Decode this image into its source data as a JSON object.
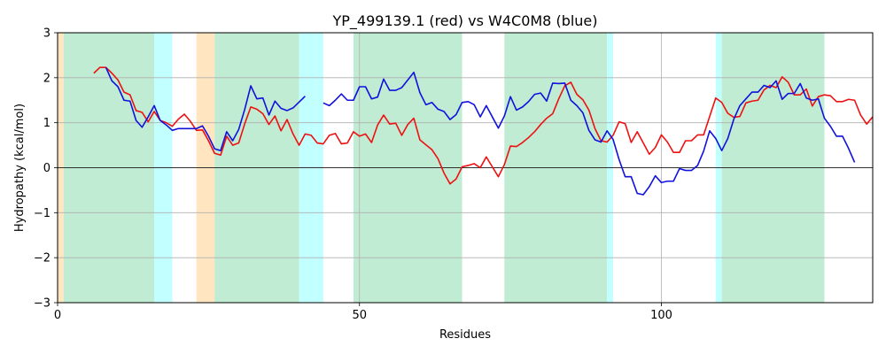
{
  "chart_data": {
    "type": "line",
    "title": "YP_499139.1 (red) vs W4C0M8 (blue)",
    "xlabel": "Residues",
    "ylabel": "Hydropathy (kcal/mol)",
    "xlim": [
      0,
      135
    ],
    "ylim": [
      -3,
      3
    ],
    "xticks": [
      0,
      50,
      100
    ],
    "yticks": [
      -3,
      -2,
      -1,
      0,
      1,
      2,
      3
    ],
    "grid": true,
    "legend": "none",
    "colors": {
      "red": "#ee1111",
      "blue": "#1111dd",
      "green": "#c0ecd3",
      "cyan": "#c2ffff",
      "orange": "#ffe6c0",
      "grid": "#b0b0b0"
    },
    "bands": [
      {
        "x0": 0,
        "x1": 1,
        "color": "orange"
      },
      {
        "x0": 1,
        "x1": 16,
        "color": "green"
      },
      {
        "x0": 16,
        "x1": 19,
        "color": "cyan"
      },
      {
        "x0": 23,
        "x1": 26,
        "color": "orange"
      },
      {
        "x0": 26,
        "x1": 40,
        "color": "green"
      },
      {
        "x0": 40,
        "x1": 44,
        "color": "cyan"
      },
      {
        "x0": 49,
        "x1": 67,
        "color": "green"
      },
      {
        "x0": 74,
        "x1": 91,
        "color": "green"
      },
      {
        "x0": 91,
        "x1": 92,
        "color": "cyan"
      },
      {
        "x0": 109,
        "x1": 110,
        "color": "cyan"
      },
      {
        "x0": 110,
        "x1": 127,
        "color": "green"
      }
    ],
    "series": [
      {
        "color": "red",
        "segments": [
          [
            [
              6,
              2.1
            ],
            [
              7,
              2.23
            ],
            [
              8,
              2.23
            ],
            [
              9,
              2.1
            ],
            [
              10,
              1.95
            ],
            [
              11,
              1.68
            ],
            [
              12,
              1.62
            ],
            [
              13,
              1.27
            ],
            [
              14,
              1.23
            ],
            [
              15,
              1.02
            ],
            [
              16,
              1.25
            ],
            [
              17,
              1.05
            ],
            [
              18,
              1.0
            ],
            [
              19,
              0.92
            ],
            [
              20,
              1.08
            ],
            [
              21,
              1.19
            ],
            [
              22,
              1.03
            ],
            [
              23,
              0.83
            ],
            [
              24,
              0.84
            ],
            [
              25,
              0.6
            ],
            [
              26,
              0.32
            ],
            [
              27,
              0.28
            ],
            [
              28,
              0.7
            ],
            [
              29,
              0.5
            ],
            [
              30,
              0.55
            ],
            [
              31,
              0.98
            ],
            [
              32,
              1.35
            ],
            [
              33,
              1.3
            ],
            [
              34,
              1.2
            ],
            [
              35,
              0.96
            ],
            [
              36,
              1.15
            ],
            [
              37,
              0.82
            ],
            [
              38,
              1.07
            ],
            [
              39,
              0.75
            ],
            [
              40,
              0.5
            ],
            [
              41,
              0.75
            ],
            [
              42,
              0.72
            ],
            [
              43,
              0.55
            ],
            [
              44,
              0.53
            ],
            [
              45,
              0.72
            ],
            [
              46,
              0.76
            ],
            [
              47,
              0.53
            ],
            [
              48,
              0.55
            ],
            [
              49,
              0.8
            ],
            [
              50,
              0.7
            ],
            [
              51,
              0.75
            ],
            [
              52,
              0.56
            ],
            [
              53,
              0.95
            ],
            [
              54,
              1.17
            ],
            [
              55,
              0.97
            ],
            [
              56,
              0.99
            ],
            [
              57,
              0.72
            ],
            [
              58,
              0.96
            ],
            [
              59,
              1.1
            ],
            [
              60,
              0.62
            ],
            [
              61,
              0.51
            ],
            [
              62,
              0.4
            ],
            [
              63,
              0.2
            ],
            [
              64,
              -0.12
            ],
            [
              65,
              -0.36
            ],
            [
              66,
              -0.25
            ],
            [
              67,
              0.02
            ],
            [
              68,
              0.05
            ],
            [
              69,
              0.09
            ],
            [
              70,
              0.0
            ],
            [
              71,
              0.24
            ],
            [
              72,
              0.02
            ],
            [
              73,
              -0.2
            ],
            [
              74,
              0.07
            ],
            [
              75,
              0.48
            ],
            [
              76,
              0.47
            ],
            [
              77,
              0.56
            ],
            [
              78,
              0.67
            ],
            [
              79,
              0.8
            ],
            [
              80,
              0.96
            ],
            [
              81,
              1.1
            ],
            [
              82,
              1.2
            ],
            [
              83,
              1.53
            ],
            [
              84,
              1.82
            ],
            [
              85,
              1.9
            ],
            [
              86,
              1.63
            ],
            [
              87,
              1.51
            ],
            [
              88,
              1.28
            ],
            [
              89,
              0.87
            ],
            [
              90,
              0.6
            ],
            [
              91,
              0.57
            ],
            [
              92,
              0.72
            ],
            [
              93,
              1.02
            ],
            [
              94,
              0.98
            ],
            [
              95,
              0.56
            ],
            [
              96,
              0.8
            ],
            [
              97,
              0.55
            ],
            [
              98,
              0.3
            ],
            [
              99,
              0.45
            ],
            [
              100,
              0.73
            ],
            [
              101,
              0.57
            ],
            [
              102,
              0.34
            ],
            [
              103,
              0.34
            ],
            [
              104,
              0.6
            ],
            [
              105,
              0.6
            ],
            [
              106,
              0.73
            ],
            [
              107,
              0.73
            ],
            [
              108,
              1.14
            ],
            [
              109,
              1.55
            ],
            [
              110,
              1.45
            ],
            [
              111,
              1.21
            ],
            [
              112,
              1.12
            ],
            [
              113,
              1.14
            ],
            [
              114,
              1.44
            ],
            [
              115,
              1.48
            ],
            [
              116,
              1.5
            ],
            [
              117,
              1.73
            ],
            [
              118,
              1.83
            ],
            [
              119,
              1.78
            ],
            [
              120,
              2.02
            ],
            [
              121,
              1.9
            ],
            [
              122,
              1.62
            ],
            [
              123,
              1.62
            ],
            [
              124,
              1.75
            ],
            [
              125,
              1.37
            ],
            [
              126,
              1.58
            ],
            [
              127,
              1.62
            ],
            [
              128,
              1.6
            ],
            [
              129,
              1.47
            ],
            [
              130,
              1.47
            ],
            [
              131,
              1.52
            ],
            [
              132,
              1.5
            ],
            [
              133,
              1.17
            ],
            [
              134,
              0.97
            ],
            [
              135,
              1.13
            ]
          ]
        ]
      },
      {
        "color": "blue",
        "segments": [
          [
            [
              8,
              2.23
            ],
            [
              9,
              1.93
            ],
            [
              10,
              1.8
            ],
            [
              11,
              1.5
            ],
            [
              12,
              1.48
            ],
            [
              13,
              1.05
            ],
            [
              14,
              0.9
            ],
            [
              15,
              1.13
            ],
            [
              16,
              1.38
            ],
            [
              17,
              1.05
            ],
            [
              18,
              0.95
            ],
            [
              19,
              0.83
            ],
            [
              20,
              0.87
            ],
            [
              21,
              0.87
            ],
            [
              22,
              0.87
            ],
            [
              23,
              0.87
            ],
            [
              24,
              0.93
            ],
            [
              25,
              0.7
            ],
            [
              26,
              0.42
            ],
            [
              27,
              0.38
            ],
            [
              28,
              0.8
            ],
            [
              29,
              0.6
            ],
            [
              30,
              0.85
            ],
            [
              31,
              1.3
            ],
            [
              32,
              1.82
            ],
            [
              33,
              1.53
            ],
            [
              34,
              1.55
            ],
            [
              35,
              1.17
            ],
            [
              36,
              1.48
            ],
            [
              37,
              1.32
            ],
            [
              38,
              1.27
            ],
            [
              39,
              1.33
            ],
            [
              40,
              1.46
            ],
            [
              41,
              1.59
            ]
          ],
          [
            [
              44,
              1.44
            ],
            [
              45,
              1.38
            ],
            [
              46,
              1.5
            ],
            [
              47,
              1.64
            ],
            [
              48,
              1.5
            ],
            [
              49,
              1.5
            ],
            [
              50,
              1.8
            ],
            [
              51,
              1.8
            ],
            [
              52,
              1.53
            ],
            [
              53,
              1.57
            ],
            [
              54,
              1.97
            ],
            [
              55,
              1.72
            ],
            [
              56,
              1.72
            ],
            [
              57,
              1.78
            ],
            [
              58,
              1.95
            ],
            [
              59,
              2.12
            ],
            [
              60,
              1.67
            ],
            [
              61,
              1.4
            ],
            [
              62,
              1.45
            ],
            [
              63,
              1.3
            ],
            [
              64,
              1.25
            ],
            [
              65,
              1.07
            ],
            [
              66,
              1.18
            ],
            [
              67,
              1.45
            ],
            [
              68,
              1.47
            ],
            [
              69,
              1.4
            ],
            [
              70,
              1.13
            ],
            [
              71,
              1.38
            ],
            [
              72,
              1.13
            ],
            [
              73,
              0.88
            ],
            [
              74,
              1.15
            ],
            [
              75,
              1.58
            ],
            [
              76,
              1.28
            ],
            [
              77,
              1.35
            ],
            [
              78,
              1.47
            ],
            [
              79,
              1.63
            ],
            [
              80,
              1.66
            ],
            [
              81,
              1.48
            ],
            [
              82,
              1.88
            ],
            [
              83,
              1.87
            ],
            [
              84,
              1.88
            ],
            [
              85,
              1.5
            ],
            [
              86,
              1.38
            ],
            [
              87,
              1.22
            ],
            [
              88,
              0.83
            ],
            [
              89,
              0.62
            ],
            [
              90,
              0.57
            ],
            [
              91,
              0.82
            ],
            [
              92,
              0.63
            ],
            [
              93,
              0.18
            ],
            [
              94,
              -0.2
            ],
            [
              95,
              -0.2
            ],
            [
              96,
              -0.57
            ],
            [
              97,
              -0.6
            ],
            [
              98,
              -0.42
            ],
            [
              99,
              -0.18
            ],
            [
              100,
              -0.33
            ],
            [
              101,
              -0.3
            ],
            [
              102,
              -0.3
            ],
            [
              103,
              -0.02
            ],
            [
              104,
              -0.06
            ],
            [
              105,
              -0.06
            ],
            [
              106,
              0.05
            ],
            [
              107,
              0.37
            ],
            [
              108,
              0.82
            ],
            [
              109,
              0.65
            ],
            [
              110,
              0.38
            ],
            [
              111,
              0.65
            ],
            [
              112,
              1.08
            ],
            [
              113,
              1.38
            ],
            [
              114,
              1.53
            ],
            [
              115,
              1.68
            ],
            [
              116,
              1.68
            ],
            [
              117,
              1.83
            ],
            [
              118,
              1.78
            ],
            [
              119,
              1.93
            ],
            [
              120,
              1.52
            ],
            [
              121,
              1.65
            ],
            [
              122,
              1.65
            ],
            [
              123,
              1.87
            ],
            [
              124,
              1.55
            ],
            [
              125,
              1.5
            ],
            [
              126,
              1.53
            ],
            [
              127,
              1.1
            ],
            [
              128,
              0.92
            ],
            [
              129,
              0.7
            ],
            [
              130,
              0.7
            ],
            [
              131,
              0.43
            ],
            [
              132,
              0.12
            ]
          ]
        ]
      }
    ]
  }
}
